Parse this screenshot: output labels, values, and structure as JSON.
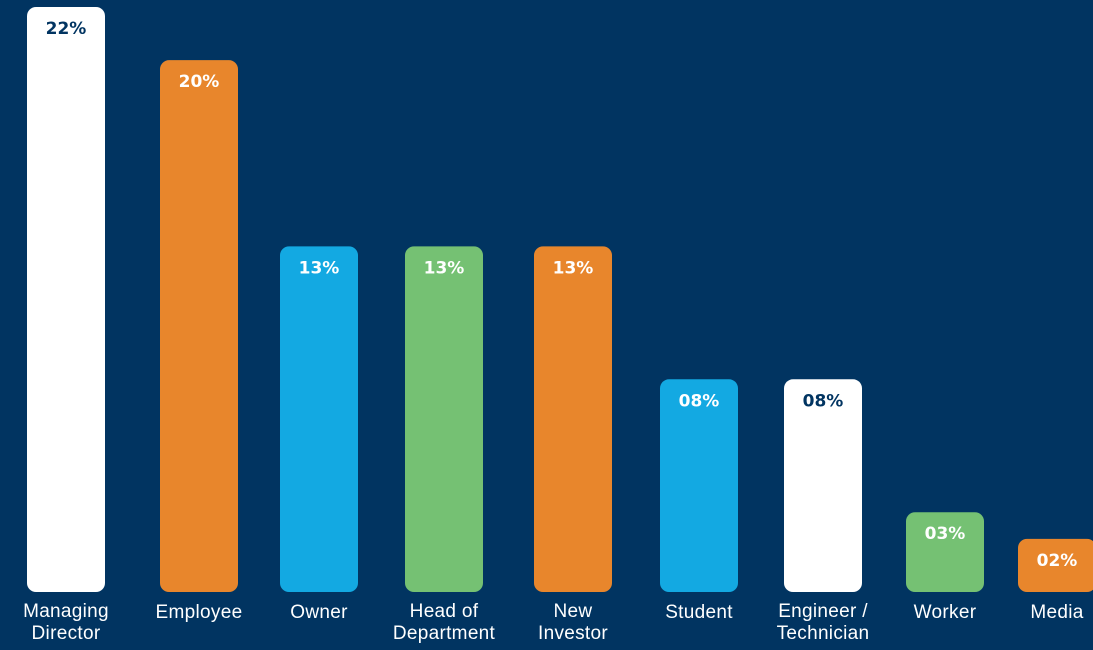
{
  "background_color": "#013461",
  "chart_data": {
    "type": "bar",
    "title": "",
    "xlabel": "",
    "ylabel": "",
    "ylim": [
      0,
      22
    ],
    "grid": false,
    "categories": [
      [
        "Managing",
        "Director"
      ],
      [
        "Employee"
      ],
      [
        "Owner"
      ],
      [
        "Head of",
        "Department"
      ],
      [
        "New",
        "Investor"
      ],
      [
        "Student"
      ],
      [
        "Engineer /",
        "Technician"
      ],
      [
        "Worker"
      ],
      [
        "Media"
      ]
    ],
    "values": [
      22,
      20,
      13,
      13,
      13,
      8,
      8,
      3,
      2
    ],
    "data_labels": [
      "22%",
      "20%",
      "13%",
      "13%",
      "13%",
      "08%",
      "08%",
      "03%",
      "02%"
    ],
    "bar_colors": [
      "#ffffff",
      "#e8862c",
      "#13a9e2",
      "#75c173",
      "#e8862c",
      "#13a9e2",
      "#ffffff",
      "#75c173",
      "#e8862c"
    ],
    "label_colors": [
      "#013461",
      "#ffffff",
      "#ffffff",
      "#ffffff",
      "#ffffff",
      "#ffffff",
      "#013461",
      "#ffffff",
      "#ffffff"
    ]
  }
}
